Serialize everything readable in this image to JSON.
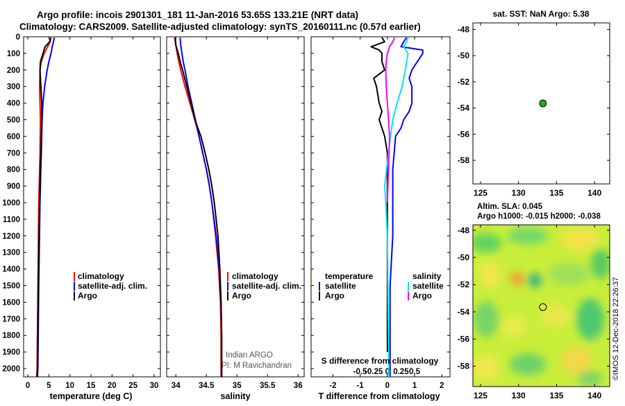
{
  "header": {
    "line1": "Argo profile: incois 2901301_181 11-Jan-2016 53.65S 133.21E (NRT data)",
    "line2": "Climatology: CARS2009. Satellite-adjusted climatology: synTS_20160111.nc (0.57d earlier)"
  },
  "colors": {
    "climatology": "#ff0000",
    "satellite": "#0000ff",
    "argo": "#000000",
    "sal_satellite": "#00e5ee",
    "sal_argo": "#ff00ff",
    "marker": "#22aa22"
  },
  "depth_axis": {
    "ticks": [
      0,
      100,
      200,
      300,
      400,
      500,
      600,
      700,
      800,
      900,
      1000,
      1100,
      1200,
      1300,
      1400,
      1500,
      1600,
      1700,
      1800,
      1900,
      2000
    ],
    "range": [
      0,
      2050
    ]
  },
  "legend_main": {
    "climatology": "climatology",
    "satellite": "satellite-adj. clim.",
    "argo": "Argo"
  },
  "legend_diff": {
    "temp_title": "temperature",
    "sal_title": "salinity",
    "satellite": "satellite",
    "argo": "Argo"
  },
  "credit": {
    "line1": "Indian ARGO",
    "line2": "PI: M Ravichandran"
  },
  "sst_map": {
    "title": "sat. SST: NaN Argo: 5.38",
    "xticks": [
      125,
      130,
      135,
      140
    ],
    "yticks": [
      -48,
      -50,
      -52,
      -54,
      -56,
      -58
    ],
    "xrange": [
      124,
      142
    ],
    "yrange": [
      -59.8,
      -47.5
    ],
    "argo_lon": 133.21,
    "argo_lat": -53.65
  },
  "sla_map": {
    "title": "Altim. SLA: 0.045",
    "subtitle": "Argo h1000: -0.015 h2000: -0.038",
    "xticks": [
      125,
      130,
      135,
      140
    ],
    "yticks": [
      -48,
      -50,
      -52,
      -54,
      -56,
      -58
    ],
    "xrange": [
      124,
      142
    ],
    "yrange": [
      -59.5,
      -47.6
    ],
    "argo_lon": 133.21,
    "argo_lat": -53.65
  },
  "watermark": "©IMOS 12-Dec-2018 22:26:37",
  "chart_data": [
    {
      "type": "line",
      "title": "",
      "xlabel": "temperature (deg C)",
      "ylabel": "",
      "xlim": [
        -1,
        31.5
      ],
      "ylim": [
        2050,
        0
      ],
      "xticks": [
        0,
        5,
        10,
        15,
        20,
        25,
        30
      ],
      "series": [
        {
          "name": "climatology",
          "color": "#ff0000",
          "depth": [
            5,
            30,
            60,
            100,
            150,
            200,
            300,
            400,
            500,
            700,
            1000,
            1500,
            2000,
            2050
          ],
          "values": [
            5.5,
            5.3,
            4.7,
            3.9,
            3.2,
            2.9,
            2.8,
            2.9,
            3.0,
            2.9,
            2.6,
            2.4,
            2.2,
            2.1
          ]
        },
        {
          "name": "satellite-adj. clim.",
          "color": "#0000ff",
          "depth": [
            5,
            30,
            60,
            100,
            150,
            200,
            300,
            400,
            500,
            700,
            1000,
            1500,
            2000,
            2050
          ],
          "values": [
            6.3,
            6.1,
            5.8,
            5.5,
            5.0,
            4.6,
            4.0,
            3.6,
            3.4,
            3.2,
            2.9,
            2.6,
            2.4,
            2.3
          ]
        },
        {
          "name": "Argo",
          "color": "#000000",
          "depth": [
            5,
            30,
            60,
            100,
            150,
            200,
            300,
            400,
            500,
            700,
            1000,
            1500,
            2000,
            2050
          ],
          "values": [
            5.4,
            5.2,
            4.1,
            3.6,
            3.0,
            2.9,
            3.1,
            3.3,
            3.3,
            3.1,
            2.8,
            2.5,
            2.3,
            2.2
          ]
        }
      ]
    },
    {
      "type": "line",
      "title": "",
      "xlabel": "salinity",
      "ylabel": "",
      "xlim": [
        33.85,
        36.1
      ],
      "ylim": [
        2050,
        0
      ],
      "xticks": [
        34,
        34.5,
        35,
        35.5,
        36
      ],
      "xticklabels": [
        "34",
        "34.5",
        "35",
        "35.5",
        "36"
      ],
      "series": [
        {
          "name": "climatology",
          "color": "#ff0000",
          "depth": [
            5,
            50,
            100,
            150,
            200,
            300,
            400,
            500,
            600,
            700,
            800,
            900,
            1000,
            1200,
            1400,
            1600,
            1800,
            2000,
            2050
          ],
          "values": [
            33.98,
            34.0,
            34.02,
            34.05,
            34.08,
            34.15,
            34.23,
            34.31,
            34.38,
            34.44,
            34.5,
            34.55,
            34.59,
            34.65,
            34.7,
            34.73,
            34.74,
            34.74,
            34.74
          ]
        },
        {
          "name": "satellite-adj. clim.",
          "color": "#0000ff",
          "depth": [
            5,
            50,
            100,
            150,
            200,
            300,
            400,
            500,
            600,
            700,
            800,
            900,
            1000,
            1200,
            1400,
            1600,
            1800,
            2000,
            2050
          ],
          "values": [
            34.07,
            34.08,
            34.1,
            34.12,
            34.15,
            34.2,
            34.26,
            34.32,
            34.38,
            34.44,
            34.5,
            34.55,
            34.59,
            34.66,
            34.71,
            34.74,
            34.75,
            34.75,
            34.75
          ]
        },
        {
          "name": "Argo",
          "color": "#000000",
          "depth": [
            5,
            50,
            100,
            150,
            200,
            300,
            400,
            500,
            600,
            700,
            800,
            900,
            1000,
            1200,
            1400,
            1600,
            1800,
            2000,
            2050
          ],
          "values": [
            33.99,
            34.0,
            34.04,
            34.07,
            34.11,
            34.18,
            34.25,
            34.31,
            34.41,
            34.48,
            34.54,
            34.59,
            34.63,
            34.69,
            34.72,
            34.74,
            34.75,
            34.75,
            34.75
          ]
        }
      ]
    },
    {
      "type": "line",
      "title": "",
      "xlabel": "T difference from climatology",
      "ylabel": "",
      "xlim": [
        -2.8,
        2.3
      ],
      "ylim": [
        2050,
        0
      ],
      "xticks": [
        -2,
        -1,
        0,
        1,
        2
      ],
      "secondary_xlabel": "S difference from climatology",
      "secondary_xticks": [
        -0.5,
        -0.25,
        0,
        0.25,
        0.5
      ],
      "secondary_xticklabels": [
        "-0.5",
        "-0.25",
        "0",
        "0.25",
        "0.5"
      ],
      "series": [
        {
          "name": "temperature satellite",
          "color": "#0000ff",
          "depth": [
            5,
            30,
            60,
            80,
            100,
            150,
            200,
            250,
            300,
            400,
            450,
            500,
            550,
            600,
            800,
            1000,
            1200,
            1500,
            1800,
            2000,
            2050
          ],
          "values": [
            0.7,
            0.6,
            0.5,
            1.3,
            1.3,
            1.1,
            0.9,
            0.8,
            0.9,
            0.9,
            0.8,
            0.6,
            0.5,
            0.3,
            0.2,
            0.2,
            0.2,
            0.1,
            0.1,
            0.1,
            0.1
          ]
        },
        {
          "name": "temperature Argo",
          "color": "#000000",
          "depth": [
            5,
            30,
            60,
            80,
            100,
            150,
            200,
            250,
            300,
            400,
            450,
            500,
            550,
            600,
            700,
            800,
            1000,
            1500,
            1900
          ],
          "values": [
            -0.2,
            -0.1,
            -0.6,
            -0.3,
            -0.2,
            -0.2,
            -0.1,
            -0.5,
            -0.4,
            -0.3,
            -0.2,
            -0.3,
            -0.2,
            -0.1,
            0.0,
            0.0,
            0.0,
            0.0,
            0.0
          ]
        },
        {
          "name": "salinity satellite",
          "color": "#00e5ee",
          "depth": [
            5,
            30,
            60,
            100,
            200,
            300,
            400,
            500,
            700,
            900,
            1000,
            1200,
            1500,
            1800,
            2000,
            2050
          ],
          "values": [
            0.38,
            0.35,
            0.3,
            0.38,
            0.33,
            0.27,
            0.18,
            0.1,
            0.02,
            -0.05,
            -0.03,
            0.0,
            0.01,
            0.02,
            0.03,
            0.03
          ]
        },
        {
          "name": "salinity Argo",
          "color": "#ff00ff",
          "depth": [
            5,
            30,
            60,
            100,
            150,
            200,
            300,
            400,
            500,
            600,
            700,
            800,
            900,
            1000
          ],
          "values": [
            0.13,
            0.1,
            0.04,
            0.0,
            -0.02,
            -0.03,
            -0.02,
            0.0,
            0.02,
            0.04,
            0.03,
            0.02,
            0.01,
            0.0
          ]
        }
      ]
    }
  ]
}
